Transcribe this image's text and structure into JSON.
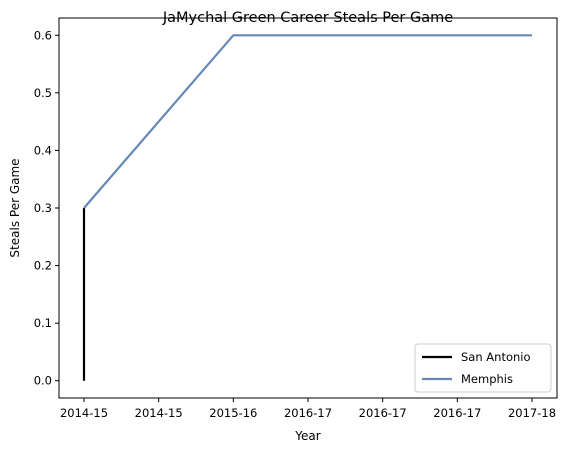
{
  "chart_data": {
    "type": "line",
    "title": "JaMychal Green Career Steals Per Game",
    "xlabel": "Year",
    "ylabel": "Steals Per Game",
    "ylim": [
      -0.03,
      0.63
    ],
    "x_ticks": [
      "2014-15",
      "2014-15",
      "2015-16",
      "2016-17",
      "2016-17",
      "2016-17",
      "2017-18"
    ],
    "y_ticks": [
      "0.0",
      "0.1",
      "0.2",
      "0.3",
      "0.4",
      "0.5",
      "0.6"
    ],
    "series": [
      {
        "name": "San Antonio",
        "color": "#000000",
        "points": [
          {
            "x": "2014-15",
            "y": 0.0
          },
          {
            "x": "2014-15",
            "y": 0.3
          }
        ]
      },
      {
        "name": "Memphis",
        "color": "#6588b7",
        "points": [
          {
            "x": "2014-15",
            "y": 0.3
          },
          {
            "x": "2015-16",
            "y": 0.6
          },
          {
            "x": "2016-17",
            "y": 0.6
          },
          {
            "x": "2017-18",
            "y": 0.6
          }
        ]
      }
    ],
    "grid": false,
    "legend": "lower-right"
  }
}
